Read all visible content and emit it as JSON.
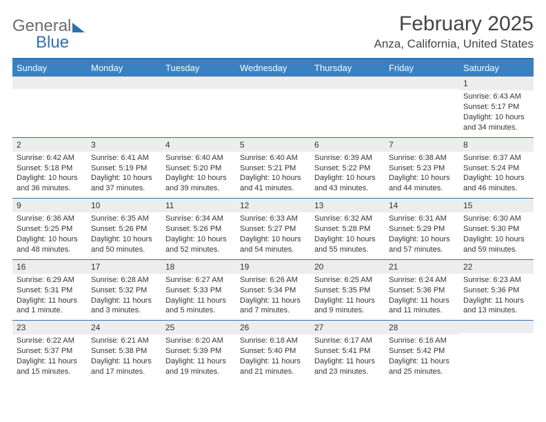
{
  "logo": {
    "general": "General",
    "blue": "Blue"
  },
  "header": {
    "month_title": "February 2025",
    "location": "Anza, California, United States"
  },
  "colors": {
    "header_bg": "#3a81c4",
    "rule": "#2f6fb0",
    "daynum_bg": "#ededed"
  },
  "day_names": [
    "Sunday",
    "Monday",
    "Tuesday",
    "Wednesday",
    "Thursday",
    "Friday",
    "Saturday"
  ],
  "weeks": [
    [
      {
        "empty": true
      },
      {
        "empty": true
      },
      {
        "empty": true
      },
      {
        "empty": true
      },
      {
        "empty": true
      },
      {
        "empty": true
      },
      {
        "day": "1",
        "sunrise": "Sunrise: 6:43 AM",
        "sunset": "Sunset: 5:17 PM",
        "daylight": "Daylight: 10 hours and 34 minutes."
      }
    ],
    [
      {
        "day": "2",
        "sunrise": "Sunrise: 6:42 AM",
        "sunset": "Sunset: 5:18 PM",
        "daylight": "Daylight: 10 hours and 36 minutes."
      },
      {
        "day": "3",
        "sunrise": "Sunrise: 6:41 AM",
        "sunset": "Sunset: 5:19 PM",
        "daylight": "Daylight: 10 hours and 37 minutes."
      },
      {
        "day": "4",
        "sunrise": "Sunrise: 6:40 AM",
        "sunset": "Sunset: 5:20 PM",
        "daylight": "Daylight: 10 hours and 39 minutes."
      },
      {
        "day": "5",
        "sunrise": "Sunrise: 6:40 AM",
        "sunset": "Sunset: 5:21 PM",
        "daylight": "Daylight: 10 hours and 41 minutes."
      },
      {
        "day": "6",
        "sunrise": "Sunrise: 6:39 AM",
        "sunset": "Sunset: 5:22 PM",
        "daylight": "Daylight: 10 hours and 43 minutes."
      },
      {
        "day": "7",
        "sunrise": "Sunrise: 6:38 AM",
        "sunset": "Sunset: 5:23 PM",
        "daylight": "Daylight: 10 hours and 44 minutes."
      },
      {
        "day": "8",
        "sunrise": "Sunrise: 6:37 AM",
        "sunset": "Sunset: 5:24 PM",
        "daylight": "Daylight: 10 hours and 46 minutes."
      }
    ],
    [
      {
        "day": "9",
        "sunrise": "Sunrise: 6:36 AM",
        "sunset": "Sunset: 5:25 PM",
        "daylight": "Daylight: 10 hours and 48 minutes."
      },
      {
        "day": "10",
        "sunrise": "Sunrise: 6:35 AM",
        "sunset": "Sunset: 5:26 PM",
        "daylight": "Daylight: 10 hours and 50 minutes."
      },
      {
        "day": "11",
        "sunrise": "Sunrise: 6:34 AM",
        "sunset": "Sunset: 5:26 PM",
        "daylight": "Daylight: 10 hours and 52 minutes."
      },
      {
        "day": "12",
        "sunrise": "Sunrise: 6:33 AM",
        "sunset": "Sunset: 5:27 PM",
        "daylight": "Daylight: 10 hours and 54 minutes."
      },
      {
        "day": "13",
        "sunrise": "Sunrise: 6:32 AM",
        "sunset": "Sunset: 5:28 PM",
        "daylight": "Daylight: 10 hours and 55 minutes."
      },
      {
        "day": "14",
        "sunrise": "Sunrise: 6:31 AM",
        "sunset": "Sunset: 5:29 PM",
        "daylight": "Daylight: 10 hours and 57 minutes."
      },
      {
        "day": "15",
        "sunrise": "Sunrise: 6:30 AM",
        "sunset": "Sunset: 5:30 PM",
        "daylight": "Daylight: 10 hours and 59 minutes."
      }
    ],
    [
      {
        "day": "16",
        "sunrise": "Sunrise: 6:29 AM",
        "sunset": "Sunset: 5:31 PM",
        "daylight": "Daylight: 11 hours and 1 minute."
      },
      {
        "day": "17",
        "sunrise": "Sunrise: 6:28 AM",
        "sunset": "Sunset: 5:32 PM",
        "daylight": "Daylight: 11 hours and 3 minutes."
      },
      {
        "day": "18",
        "sunrise": "Sunrise: 6:27 AM",
        "sunset": "Sunset: 5:33 PM",
        "daylight": "Daylight: 11 hours and 5 minutes."
      },
      {
        "day": "19",
        "sunrise": "Sunrise: 6:26 AM",
        "sunset": "Sunset: 5:34 PM",
        "daylight": "Daylight: 11 hours and 7 minutes."
      },
      {
        "day": "20",
        "sunrise": "Sunrise: 6:25 AM",
        "sunset": "Sunset: 5:35 PM",
        "daylight": "Daylight: 11 hours and 9 minutes."
      },
      {
        "day": "21",
        "sunrise": "Sunrise: 6:24 AM",
        "sunset": "Sunset: 5:36 PM",
        "daylight": "Daylight: 11 hours and 11 minutes."
      },
      {
        "day": "22",
        "sunrise": "Sunrise: 6:23 AM",
        "sunset": "Sunset: 5:36 PM",
        "daylight": "Daylight: 11 hours and 13 minutes."
      }
    ],
    [
      {
        "day": "23",
        "sunrise": "Sunrise: 6:22 AM",
        "sunset": "Sunset: 5:37 PM",
        "daylight": "Daylight: 11 hours and 15 minutes."
      },
      {
        "day": "24",
        "sunrise": "Sunrise: 6:21 AM",
        "sunset": "Sunset: 5:38 PM",
        "daylight": "Daylight: 11 hours and 17 minutes."
      },
      {
        "day": "25",
        "sunrise": "Sunrise: 6:20 AM",
        "sunset": "Sunset: 5:39 PM",
        "daylight": "Daylight: 11 hours and 19 minutes."
      },
      {
        "day": "26",
        "sunrise": "Sunrise: 6:18 AM",
        "sunset": "Sunset: 5:40 PM",
        "daylight": "Daylight: 11 hours and 21 minutes."
      },
      {
        "day": "27",
        "sunrise": "Sunrise: 6:17 AM",
        "sunset": "Sunset: 5:41 PM",
        "daylight": "Daylight: 11 hours and 23 minutes."
      },
      {
        "day": "28",
        "sunrise": "Sunrise: 6:16 AM",
        "sunset": "Sunset: 5:42 PM",
        "daylight": "Daylight: 11 hours and 25 minutes."
      },
      {
        "empty": true
      }
    ]
  ]
}
